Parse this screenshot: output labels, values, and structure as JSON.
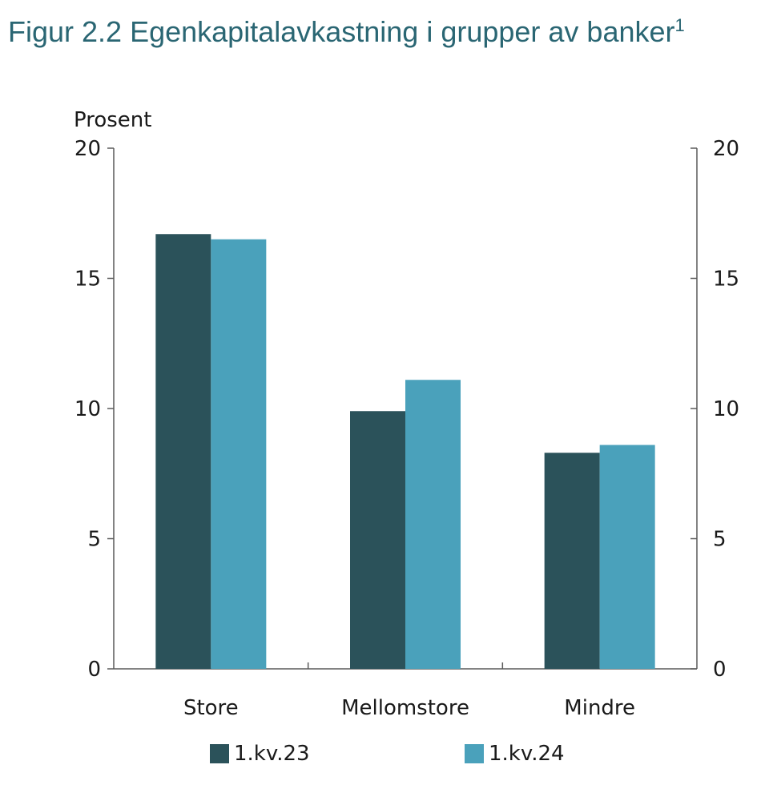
{
  "title": {
    "text": "Figur 2.2 Egenkapitalavkastning i grupper av banker",
    "footnote": "1"
  },
  "colors": {
    "title": "#2a6673",
    "series_1": "#2b525a",
    "series_2": "#4aa1bb",
    "axis": "#5a5a5a",
    "text": "#1a1a1a"
  },
  "chart_data": {
    "type": "bar",
    "title": "Figur 2.2 Egenkapitalavkastning i grupper av banker",
    "ylabel": "Prosent",
    "xlabel": "",
    "categories": [
      "Store",
      "Mellomstore",
      "Mindre"
    ],
    "series": [
      {
        "name": "1.kv.23",
        "values": [
          16.7,
          9.9,
          8.3
        ]
      },
      {
        "name": "1.kv.24",
        "values": [
          16.5,
          11.1,
          8.6
        ]
      }
    ],
    "ylim": [
      0,
      20
    ],
    "yticks": [
      0,
      5,
      10,
      15,
      20
    ],
    "secondary_y_axis": true,
    "grid": false,
    "legend_position": "bottom"
  }
}
